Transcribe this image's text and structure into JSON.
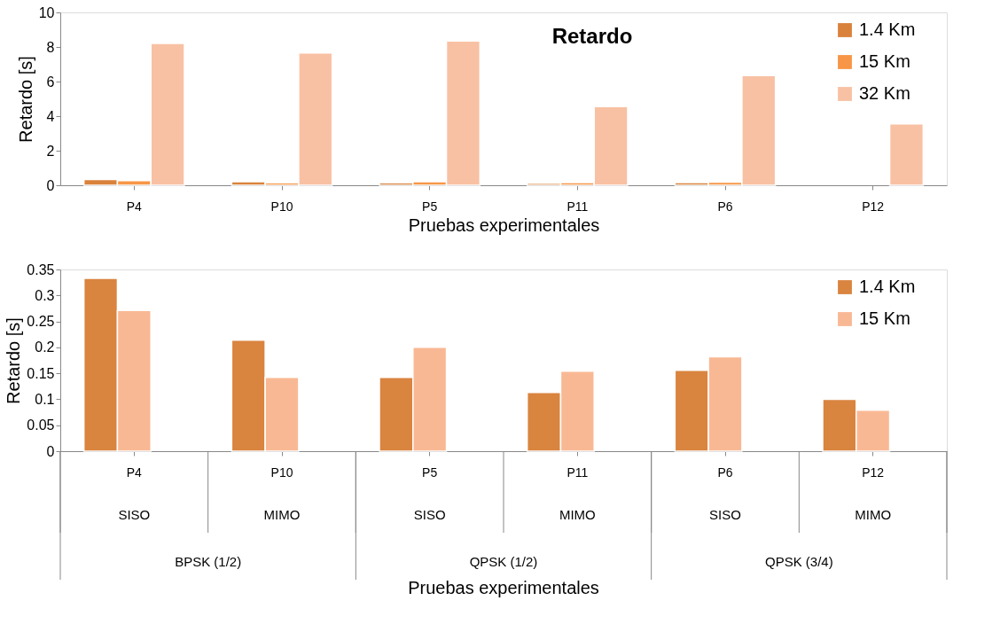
{
  "chart_data": [
    {
      "type": "bar",
      "title": "Retardo",
      "xlabel": "Pruebas experimentales",
      "ylabel": "Retardo [s]",
      "categories": [
        "P4",
        "P10",
        "P5",
        "P11",
        "P6",
        "P12"
      ],
      "series": [
        {
          "name": "1.4 Km",
          "color": "#d9823b",
          "values": [
            0.33,
            0.21,
            0.14,
            0.11,
            0.16,
            null
          ]
        },
        {
          "name": "15 Km",
          "color": "#f79646",
          "values": [
            0.27,
            0.14,
            0.2,
            0.15,
            0.18,
            null
          ]
        },
        {
          "name": "32 Km",
          "color": "#f8c1a3",
          "values": [
            8.2,
            7.65,
            8.35,
            4.55,
            6.35,
            3.55
          ]
        }
      ],
      "ylim": [
        0,
        10
      ],
      "yticks": [
        0,
        2,
        4,
        6,
        8,
        10
      ],
      "grid": false,
      "legend": "top right"
    },
    {
      "type": "bar",
      "xlabel": "Pruebas experimentales",
      "ylabel": "Retardo [s]",
      "categories": [
        "P4",
        "P10",
        "P5",
        "P11",
        "P6",
        "P12"
      ],
      "series": [
        {
          "name": "1.4 Km",
          "color": "#d9843f",
          "values": [
            0.333,
            0.214,
            0.142,
            0.113,
            0.156,
            0.1
          ]
        },
        {
          "name": "15 Km",
          "color": "#f9b894",
          "values": [
            0.271,
            0.142,
            0.2,
            0.154,
            0.182,
            0.079
          ]
        }
      ],
      "ylim": [
        0,
        0.35
      ],
      "yticks": [
        0,
        0.05,
        0.1,
        0.15,
        0.2,
        0.25,
        0.3,
        0.35
      ],
      "grid": false,
      "legend": "top right",
      "annotations": [
        "SISO",
        "MIMO",
        "SISO",
        "MIMO",
        "SISO",
        "MIMO",
        "BPSK (1/2)",
        "QPSK (1/2)",
        "QPSK (3/4)"
      ]
    }
  ]
}
